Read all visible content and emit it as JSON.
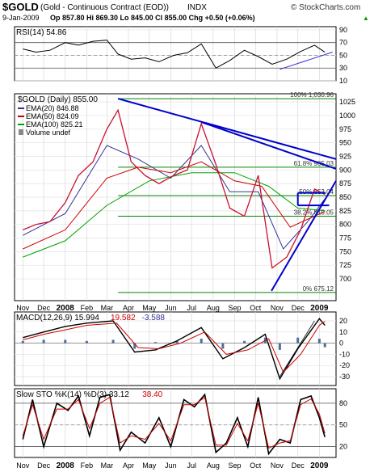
{
  "header": {
    "symbol": "$GOLD",
    "description": "(Gold - Continuous Contract (EOD))",
    "exchange": "INDX",
    "watermark": "© StockCharts.com",
    "date": "9-Jan-2009",
    "quote": "Op 857.80  Hi 869.30  Lo 845.00  Cl 855.00  Chg +0.50 (+0.06%)",
    "quote_arrow": "▲"
  },
  "chart_data": [
    {
      "type": "line",
      "panel": "rsi",
      "legend": "RSI(14) 54.86",
      "ylim": [
        10,
        95
      ],
      "ticks": [
        90,
        70,
        50,
        30,
        10
      ],
      "reference_lines": [
        70,
        30
      ],
      "x": [
        "2007-11-01",
        "2007-11-20",
        "2007-12-10",
        "2008-01-01",
        "2008-01-20",
        "2008-02-10",
        "2008-03-01",
        "2008-03-17",
        "2008-04-05",
        "2008-04-25",
        "2008-05-15",
        "2008-06-05",
        "2008-06-25",
        "2008-07-15",
        "2008-08-05",
        "2008-08-25",
        "2008-09-15",
        "2008-10-05",
        "2008-10-25",
        "2008-11-15",
        "2008-12-05",
        "2008-12-25",
        "2009-01-09"
      ],
      "values": [
        60,
        55,
        58,
        70,
        66,
        72,
        74,
        52,
        44,
        46,
        40,
        50,
        54,
        68,
        30,
        42,
        58,
        48,
        36,
        44,
        56,
        66,
        54.86
      ]
    },
    {
      "type": "line",
      "panel": "price",
      "title": "$GOLD (Daily) 855.00",
      "ylim": [
        660,
        1040
      ],
      "ticks": [
        1025,
        1000,
        975,
        950,
        925,
        900,
        875,
        850,
        825,
        800,
        775,
        750,
        725,
        700
      ],
      "series": [
        {
          "name": "$GOLD (Daily)",
          "color": "#c8102e",
          "x": [
            "2007-11-01",
            "2007-11-20",
            "2007-12-10",
            "2008-01-01",
            "2008-01-20",
            "2008-02-10",
            "2008-03-01",
            "2008-03-17",
            "2008-04-05",
            "2008-04-25",
            "2008-05-15",
            "2008-06-05",
            "2008-06-25",
            "2008-07-15",
            "2008-08-05",
            "2008-08-25",
            "2008-09-15",
            "2008-10-05",
            "2008-10-25",
            "2008-11-15",
            "2008-12-05",
            "2008-12-25",
            "2009-01-09"
          ],
          "values": [
            790,
            800,
            805,
            840,
            890,
            915,
            975,
            1010,
            915,
            890,
            875,
            890,
            900,
            985,
            910,
            830,
            815,
            890,
            720,
            740,
            790,
            865,
            855
          ]
        },
        {
          "name": "EMA(20)",
          "legend": "EMA(20) 846.88",
          "color": "#333399",
          "x": [
            "2007-11-01",
            "2008-01-01",
            "2008-03-01",
            "2008-04-15",
            "2008-06-01",
            "2008-07-15",
            "2008-08-25",
            "2008-10-05",
            "2008-11-10",
            "2008-12-15",
            "2009-01-09"
          ],
          "values": [
            780,
            820,
            945,
            920,
            885,
            945,
            860,
            860,
            755,
            805,
            846.88
          ]
        },
        {
          "name": "EMA(50)",
          "legend": "EMA(50) 824.09",
          "color": "#cc0000",
          "x": [
            "2007-11-01",
            "2008-01-01",
            "2008-03-01",
            "2008-04-15",
            "2008-06-01",
            "2008-07-15",
            "2008-09-01",
            "2008-10-10",
            "2008-11-20",
            "2009-01-09"
          ],
          "values": [
            755,
            790,
            885,
            905,
            895,
            915,
            880,
            870,
            795,
            824.09
          ]
        },
        {
          "name": "EMA(100)",
          "legend": "EMA(100) 825.21",
          "color": "#00a000",
          "x": [
            "2007-11-01",
            "2008-01-01",
            "2008-03-01",
            "2008-05-01",
            "2008-07-01",
            "2008-09-01",
            "2008-10-20",
            "2008-12-01",
            "2009-01-09"
          ],
          "values": [
            740,
            770,
            835,
            880,
            895,
            895,
            870,
            830,
            825.21
          ]
        }
      ],
      "volume_label": "Volume undef",
      "fibonacci": [
        {
          "label": "100% 1,030.96",
          "value": 1030.96
        },
        {
          "label": "61.8% 905.03",
          "value": 905.03
        },
        {
          "label": "50% 853.04",
          "value": 853.04
        },
        {
          "label": "38.2% 815.05",
          "value": 815.05
        },
        {
          "label": "0% 675.12",
          "value": 675.12
        }
      ],
      "trendlines": [
        {
          "color": "#0000cc",
          "from": [
            "2008-03-17",
            1031
          ],
          "to": [
            "2009-01-25",
            920
          ]
        },
        {
          "color": "#0000cc",
          "from": [
            "2008-07-15",
            988
          ],
          "to": [
            "2009-01-25",
            902
          ]
        },
        {
          "color": "#0000cc",
          "from": [
            "2008-10-24",
            678
          ],
          "to": [
            "2009-01-25",
            880
          ]
        },
        {
          "color": "#0000cc",
          "from": [
            "2008-12-01",
            835
          ],
          "to": [
            "2009-01-15",
            835
          ]
        },
        {
          "color": "#0000cc",
          "from": [
            "2008-12-01",
            835
          ],
          "to": [
            "2008-12-01",
            858
          ]
        },
        {
          "color": "#0000cc",
          "from": [
            "2008-12-01",
            858
          ],
          "to": [
            "2009-01-10",
            858
          ]
        }
      ]
    },
    {
      "type": "line",
      "panel": "macd",
      "legend": [
        "MACD(12,26,9) 15.994",
        "19.582",
        "-3.588"
      ],
      "legend_colors": [
        "#000000",
        "#cc0000",
        "#333399"
      ],
      "ylim": [
        -38,
        28
      ],
      "ticks": [
        20,
        10,
        0,
        -10,
        -20,
        -30
      ],
      "series": [
        {
          "name": "MACD(12,26,9)",
          "color": "#000000",
          "x": [
            "2007-11-01",
            "2007-12-01",
            "2008-01-01",
            "2008-02-01",
            "2008-03-10",
            "2008-04-10",
            "2008-05-10",
            "2008-06-10",
            "2008-07-15",
            "2008-08-15",
            "2008-09-15",
            "2008-10-15",
            "2008-11-05",
            "2008-12-01",
            "2009-01-01",
            "2009-01-09"
          ],
          "values": [
            5,
            10,
            15,
            18,
            20,
            -8,
            -6,
            2,
            14,
            -14,
            -4,
            8,
            -32,
            -5,
            22,
            15.994
          ]
        },
        {
          "name": "signal",
          "color": "#cc0000",
          "x": [
            "2007-11-01",
            "2007-12-01",
            "2008-01-01",
            "2008-02-01",
            "2008-03-15",
            "2008-04-15",
            "2008-05-15",
            "2008-06-15",
            "2008-07-20",
            "2008-08-20",
            "2008-09-20",
            "2008-10-20",
            "2008-11-10",
            "2008-12-05",
            "2009-01-01",
            "2009-01-09"
          ],
          "values": [
            3,
            8,
            12,
            16,
            18,
            -4,
            -5,
            0,
            10,
            -10,
            -6,
            4,
            -26,
            -10,
            16,
            19.582
          ]
        }
      ],
      "histogram": {
        "x": [
          "2007-11-01",
          "2007-12-01",
          "2008-01-01",
          "2008-02-01",
          "2008-03-10",
          "2008-04-10",
          "2008-05-10",
          "2008-06-10",
          "2008-07-15",
          "2008-08-15",
          "2008-09-15",
          "2008-10-15",
          "2008-11-05",
          "2008-12-01",
          "2009-01-01",
          "2009-01-09"
        ],
        "values": [
          2,
          3,
          3,
          2,
          3,
          -5,
          1,
          2,
          4,
          -5,
          2,
          5,
          -6,
          5,
          4,
          -3.588
        ]
      }
    },
    {
      "type": "line",
      "panel": "stochastic",
      "legend": [
        "Slow STO %K(14) %D(3) 33.12",
        "38.40"
      ],
      "legend_colors": [
        "#000000",
        "#cc0000"
      ],
      "ylim": [
        5,
        100
      ],
      "ticks": [
        80,
        50,
        20
      ],
      "reference_lines": [
        80,
        20
      ],
      "series": [
        {
          "name": "%K(14)",
          "color": "#000000",
          "x": [
            "2007-11-01",
            "2007-11-15",
            "2007-12-01",
            "2007-12-20",
            "2008-01-05",
            "2008-01-20",
            "2008-02-05",
            "2008-02-20",
            "2008-03-05",
            "2008-03-20",
            "2008-04-05",
            "2008-04-25",
            "2008-05-15",
            "2008-06-01",
            "2008-06-20",
            "2008-07-05",
            "2008-07-20",
            "2008-08-05",
            "2008-08-20",
            "2008-09-05",
            "2008-09-20",
            "2008-10-05",
            "2008-10-20",
            "2008-11-05",
            "2008-11-20",
            "2008-12-05",
            "2008-12-20",
            "2009-01-01",
            "2009-01-09"
          ],
          "values": [
            30,
            85,
            20,
            80,
            70,
            90,
            35,
            88,
            92,
            15,
            40,
            25,
            60,
            20,
            85,
            75,
            92,
            12,
            25,
            60,
            20,
            88,
            10,
            30,
            25,
            85,
            90,
            60,
            33.12
          ]
        },
        {
          "name": "%D(3)",
          "color": "#cc0000",
          "x": [
            "2007-11-01",
            "2007-11-15",
            "2007-12-01",
            "2007-12-20",
            "2008-01-05",
            "2008-01-20",
            "2008-02-05",
            "2008-02-20",
            "2008-03-05",
            "2008-03-20",
            "2008-04-05",
            "2008-04-25",
            "2008-05-15",
            "2008-06-01",
            "2008-06-20",
            "2008-07-05",
            "2008-07-20",
            "2008-08-05",
            "2008-08-20",
            "2008-09-05",
            "2008-09-20",
            "2008-10-05",
            "2008-10-20",
            "2008-11-05",
            "2008-11-20",
            "2008-12-05",
            "2008-12-20",
            "2009-01-01",
            "2009-01-09"
          ],
          "values": [
            35,
            78,
            30,
            72,
            72,
            85,
            45,
            80,
            88,
            25,
            35,
            30,
            52,
            28,
            78,
            78,
            88,
            22,
            22,
            52,
            28,
            80,
            18,
            25,
            28,
            78,
            86,
            65,
            38.4
          ]
        }
      ]
    }
  ],
  "x_axis": {
    "labels": [
      {
        "text": "Nov",
        "date": "2007-11-01"
      },
      {
        "text": "Dec",
        "date": "2007-12-01"
      },
      {
        "text": "2008",
        "date": "2008-01-01",
        "bold": true
      },
      {
        "text": "Feb",
        "date": "2008-02-01"
      },
      {
        "text": "Mar",
        "date": "2008-03-01"
      },
      {
        "text": "Apr",
        "date": "2008-04-01"
      },
      {
        "text": "May",
        "date": "2008-05-01"
      },
      {
        "text": "Jun",
        "date": "2008-06-01"
      },
      {
        "text": "Jul",
        "date": "2008-07-01"
      },
      {
        "text": "Aug",
        "date": "2008-08-01"
      },
      {
        "text": "Sep",
        "date": "2008-09-01"
      },
      {
        "text": "Oct",
        "date": "2008-10-01"
      },
      {
        "text": "Nov",
        "date": "2008-11-01"
      },
      {
        "text": "Dec",
        "date": "2008-12-01"
      },
      {
        "text": "2009",
        "date": "2009-01-01",
        "bold": true
      }
    ]
  }
}
